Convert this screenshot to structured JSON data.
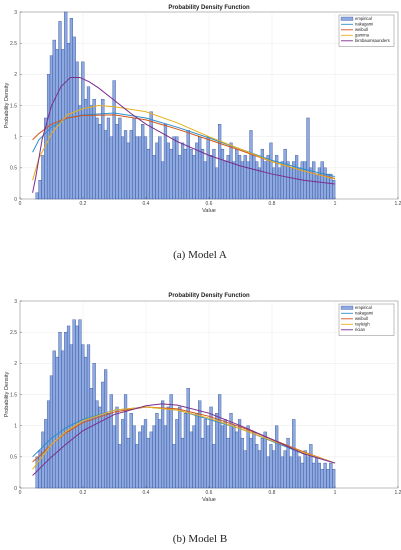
{
  "captions": [
    "(a) Model A",
    "(b) Model B"
  ],
  "chart_data": [
    {
      "type": "bar",
      "title": "Probability Density Function",
      "xlabel": "Value",
      "ylabel": "Probability Density",
      "xlim": [
        0,
        1.2
      ],
      "ylim": [
        0,
        3
      ],
      "xticks": [
        "0",
        "0.2",
        "0.4",
        "0.6",
        "0.8",
        "1",
        "1.2"
      ],
      "yticks": [
        "0",
        "0.5",
        "1",
        "1.5",
        "2",
        "2.5",
        "3"
      ],
      "grid": true,
      "legend_position": "top-right",
      "colors": {
        "empirical": "#8ea9e0",
        "empirical_edge": "#1f3f8f",
        "nakagami": "#2e8fc9",
        "weibull": "#d4541c",
        "gamma": "#e8b01a",
        "birnbaumsaunders": "#7b2d8e"
      },
      "histogram": {
        "name": "empirical",
        "x_start": 0.05,
        "bin_width": 0.00905,
        "values": [
          0.1,
          0.3,
          0.7,
          1.3,
          2.0,
          2.3,
          2.55,
          2.4,
          2.85,
          2.4,
          3.0,
          2.5,
          2.9,
          2.6,
          2.2,
          1.5,
          2.2,
          1.6,
          1.8,
          1.5,
          1.6,
          1.3,
          1.2,
          1.6,
          1.1,
          1.3,
          1.0,
          1.9,
          1.2,
          1.3,
          1.0,
          1.1,
          0.9,
          1.1,
          1.3,
          1.0,
          1.0,
          1.2,
          1.0,
          0.8,
          1.4,
          0.7,
          0.9,
          1.0,
          0.6,
          1.2,
          0.9,
          0.8,
          1.0,
          1.0,
          0.7,
          0.9,
          0.8,
          1.1,
          0.8,
          0.7,
          0.9,
          1.0,
          0.8,
          0.6,
          1.0,
          0.7,
          0.8,
          0.5,
          1.2,
          0.8,
          0.6,
          0.7,
          0.9,
          0.6,
          0.8,
          0.7,
          0.6,
          0.7,
          0.6,
          1.1,
          0.7,
          0.6,
          0.5,
          0.8,
          0.6,
          0.7,
          0.9,
          0.5,
          0.7,
          0.5,
          0.6,
          0.8,
          0.6,
          0.5,
          0.6,
          0.7,
          0.5,
          0.6,
          0.6,
          1.3,
          0.5,
          0.6,
          0.4,
          0.5,
          0.6,
          0.5,
          0.4,
          0.4,
          0.3
        ]
      },
      "series": [
        {
          "name": "nakagami",
          "x": [
            0.04,
            0.06,
            0.1,
            0.15,
            0.2,
            0.3,
            0.4,
            0.5,
            0.6,
            0.7,
            0.8,
            0.9,
            1.0
          ],
          "y": [
            0.75,
            0.95,
            1.15,
            1.3,
            1.35,
            1.38,
            1.3,
            1.15,
            0.98,
            0.8,
            0.62,
            0.48,
            0.36
          ]
        },
        {
          "name": "weibull",
          "x": [
            0.04,
            0.06,
            0.1,
            0.15,
            0.2,
            0.3,
            0.4,
            0.5,
            0.6,
            0.7,
            0.8,
            0.9,
            1.0
          ],
          "y": [
            0.95,
            1.05,
            1.2,
            1.3,
            1.34,
            1.35,
            1.27,
            1.12,
            0.95,
            0.78,
            0.6,
            0.45,
            0.33
          ]
        },
        {
          "name": "gamma",
          "x": [
            0.04,
            0.06,
            0.1,
            0.15,
            0.2,
            0.25,
            0.3,
            0.4,
            0.5,
            0.6,
            0.7,
            0.8,
            0.9,
            1.0
          ],
          "y": [
            0.3,
            0.65,
            1.05,
            1.35,
            1.45,
            1.5,
            1.48,
            1.4,
            1.22,
            1.0,
            0.8,
            0.6,
            0.45,
            0.32
          ]
        },
        {
          "name": "birnbaumsaunders",
          "x": [
            0.04,
            0.05,
            0.07,
            0.1,
            0.13,
            0.16,
            0.19,
            0.22,
            0.25,
            0.3,
            0.35,
            0.4,
            0.5,
            0.6,
            0.7,
            0.8,
            0.9,
            1.0
          ],
          "y": [
            0.1,
            0.35,
            0.95,
            1.5,
            1.8,
            1.95,
            1.95,
            1.88,
            1.78,
            1.58,
            1.38,
            1.2,
            0.92,
            0.7,
            0.53,
            0.4,
            0.3,
            0.24
          ]
        }
      ]
    },
    {
      "type": "bar",
      "title": "Probability Density Function",
      "xlabel": "Value",
      "ylabel": "Probability Density",
      "xlim": [
        0,
        1.2
      ],
      "ylim": [
        0,
        3
      ],
      "xticks": [
        "0",
        "0.2",
        "0.4",
        "0.6",
        "0.8",
        "1",
        "1.2"
      ],
      "yticks": [
        "0",
        "0.5",
        "1",
        "1.5",
        "2",
        "2.5",
        "3"
      ],
      "grid": true,
      "legend_position": "top-right",
      "colors": {
        "empirical": "#8ea9e0",
        "empirical_edge": "#1f3f8f",
        "nakagami": "#2e8fc9",
        "weibull": "#d4541c",
        "rayleigh": "#e8b01a",
        "rician": "#7b2d8e"
      },
      "histogram": {
        "name": "empirical",
        "x_start": 0.05,
        "bin_width": 0.00905,
        "values": [
          0.5,
          0.6,
          0.9,
          1.1,
          1.4,
          1.8,
          2.2,
          2.1,
          2.5,
          2.2,
          2.5,
          2.6,
          2.3,
          2.7,
          2.6,
          2.7,
          2.3,
          2.1,
          2.3,
          1.6,
          2.0,
          1.4,
          1.3,
          1.7,
          1.9,
          1.2,
          1.5,
          1.0,
          1.3,
          0.7,
          1.1,
          1.5,
          0.8,
          1.2,
          1.0,
          0.7,
          0.9,
          1.0,
          1.1,
          0.8,
          0.9,
          1.0,
          1.2,
          1.1,
          1.4,
          1.0,
          1.3,
          1.5,
          0.7,
          1.1,
          1.3,
          0.8,
          1.2,
          1.6,
          0.9,
          1.0,
          1.2,
          1.4,
          0.8,
          1.1,
          1.0,
          1.3,
          0.7,
          1.2,
          1.5,
          1.0,
          1.1,
          0.8,
          1.2,
          1.0,
          0.9,
          1.1,
          0.8,
          0.6,
          1.0,
          0.8,
          0.9,
          0.7,
          0.6,
          0.8,
          0.9,
          0.5,
          0.7,
          0.6,
          1.0,
          0.7,
          0.5,
          0.6,
          0.8,
          0.5,
          1.1,
          0.6,
          0.5,
          0.4,
          0.6,
          0.5,
          0.7,
          0.4,
          0.5,
          0.4,
          0.3,
          0.4,
          0.3,
          0.4,
          0.3
        ]
      },
      "series": [
        {
          "name": "nakagami",
          "x": [
            0.04,
            0.07,
            0.1,
            0.15,
            0.2,
            0.3,
            0.4,
            0.5,
            0.6,
            0.7,
            0.8,
            0.9,
            1.0
          ],
          "y": [
            0.5,
            0.65,
            0.8,
            0.98,
            1.1,
            1.25,
            1.3,
            1.25,
            1.1,
            0.95,
            0.75,
            0.55,
            0.4
          ]
        },
        {
          "name": "weibull",
          "x": [
            0.04,
            0.07,
            0.1,
            0.15,
            0.2,
            0.3,
            0.4,
            0.5,
            0.6,
            0.7,
            0.8,
            0.9,
            1.0
          ],
          "y": [
            0.42,
            0.55,
            0.7,
            0.9,
            1.05,
            1.22,
            1.3,
            1.27,
            1.15,
            0.98,
            0.78,
            0.58,
            0.4
          ]
        },
        {
          "name": "rayleigh",
          "x": [
            0.04,
            0.07,
            0.1,
            0.15,
            0.2,
            0.3,
            0.4,
            0.5,
            0.6,
            0.7,
            0.8,
            0.9,
            1.0
          ],
          "y": [
            0.3,
            0.5,
            0.7,
            0.92,
            1.08,
            1.25,
            1.3,
            1.25,
            1.12,
            0.95,
            0.76,
            0.57,
            0.4
          ]
        },
        {
          "name": "rician",
          "x": [
            0.04,
            0.07,
            0.1,
            0.15,
            0.2,
            0.3,
            0.4,
            0.45,
            0.5,
            0.6,
            0.7,
            0.8,
            0.9,
            1.0
          ],
          "y": [
            0.2,
            0.35,
            0.5,
            0.72,
            0.92,
            1.18,
            1.32,
            1.35,
            1.33,
            1.2,
            1.0,
            0.78,
            0.55,
            0.4
          ]
        }
      ]
    }
  ]
}
